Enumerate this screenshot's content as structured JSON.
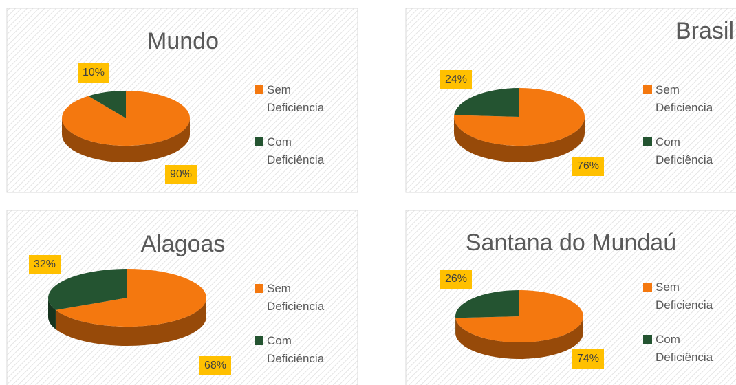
{
  "chart_data": [
    {
      "type": "pie",
      "title": "Mundo",
      "categories": [
        "Sem Deficiencia",
        "Com Deficiência"
      ],
      "values": [
        90,
        10
      ],
      "value_labels": [
        "90%",
        "10%"
      ],
      "colors": [
        "#f4780f",
        "#245431"
      ]
    },
    {
      "type": "pie",
      "title": "Brasil",
      "categories": [
        "Sem Deficiencia",
        "Com Deficiência"
      ],
      "values": [
        76,
        24
      ],
      "value_labels": [
        "76%",
        "24%"
      ],
      "colors": [
        "#f4780f",
        "#245431"
      ]
    },
    {
      "type": "pie",
      "title": "Alagoas",
      "categories": [
        "Sem Deficiencia",
        "Com Deficiência"
      ],
      "values": [
        68,
        32
      ],
      "value_labels": [
        "68%",
        "32%"
      ],
      "colors": [
        "#f4780f",
        "#245431"
      ]
    },
    {
      "type": "pie",
      "title": "Santana do Mundaú",
      "categories": [
        "Sem Deficiencia",
        "Com Deficiência"
      ],
      "values": [
        74,
        26
      ],
      "value_labels": [
        "74%",
        "26%"
      ],
      "colors": [
        "#f4780f",
        "#245431"
      ]
    }
  ]
}
